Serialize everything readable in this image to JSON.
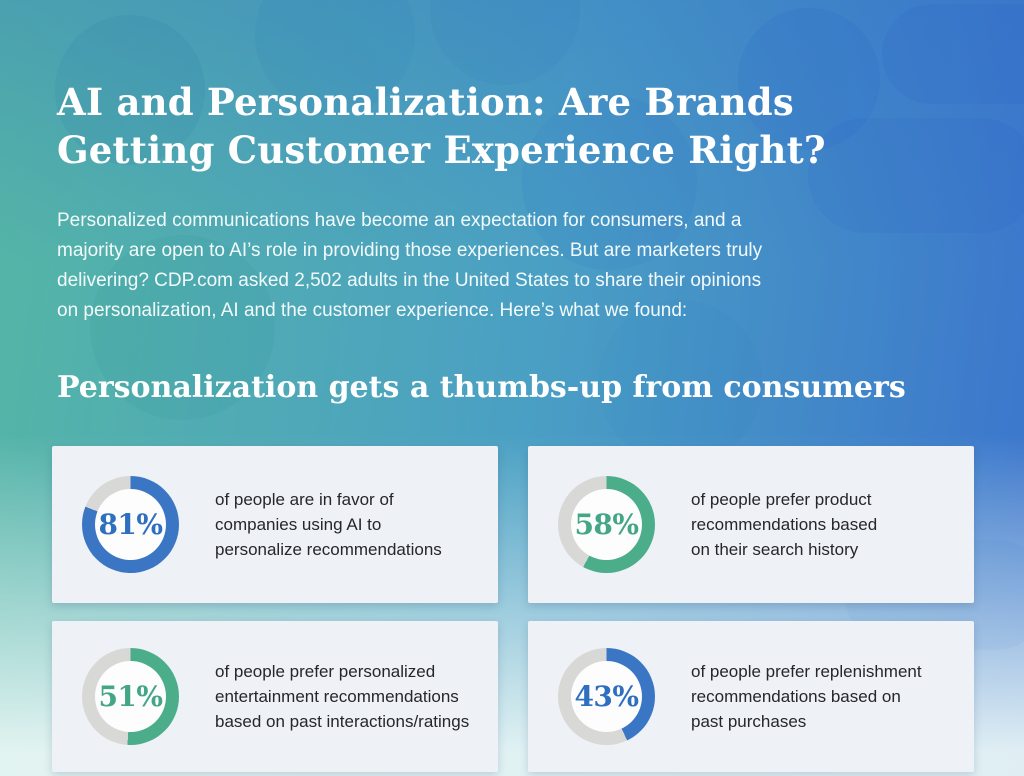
{
  "header": {
    "title_line1": "AI and Personalization: Are Brands",
    "title_line2": "Getting Customer Experience Right?",
    "intro_lines": [
      "Personalized communications have become an expectation for consumers, and a",
      "majority are open to AI’s role in providing those experiences. But are marketers truly",
      "delivering? CDP.com asked 2,502 adults in the United States to share their opinions",
      "on personalization, AI and the customer experience. Here’s what we found:"
    ]
  },
  "section": {
    "heading": "Personalization gets a thumbs-up from consumers"
  },
  "colors": {
    "accent_blue": "#3b76c4",
    "accent_green": "#4cad8b",
    "label_blue": "#2f6fc0",
    "label_green": "#43a686",
    "ring_track": "#d8d8d6",
    "card_bg": "#eef1f5",
    "bg_teal": "#55b6a5",
    "bg_blue": "#3b74cd"
  },
  "chart_data": [
    {
      "type": "pie",
      "subtype": "donut",
      "value": 81,
      "remainder": 19,
      "percent_label": "81%",
      "color_key": "blue",
      "caption_lines": [
        "of people are in favor of",
        "companies using AI to",
        "personalize recommendations"
      ]
    },
    {
      "type": "pie",
      "subtype": "donut",
      "value": 58,
      "remainder": 42,
      "percent_label": "58%",
      "color_key": "green",
      "caption_lines": [
        "of people prefer product",
        "recommendations based",
        "on their search history"
      ]
    },
    {
      "type": "pie",
      "subtype": "donut",
      "value": 51,
      "remainder": 49,
      "percent_label": "51%",
      "color_key": "green",
      "caption_lines": [
        "of people prefer personalized",
        "entertainment recommendations",
        "based on past interactions/ratings"
      ]
    },
    {
      "type": "pie",
      "subtype": "donut",
      "value": 43,
      "remainder": 57,
      "percent_label": "43%",
      "color_key": "blue",
      "caption_lines": [
        "of people prefer replenishment",
        "recommendations based on",
        "past purchases"
      ]
    }
  ]
}
